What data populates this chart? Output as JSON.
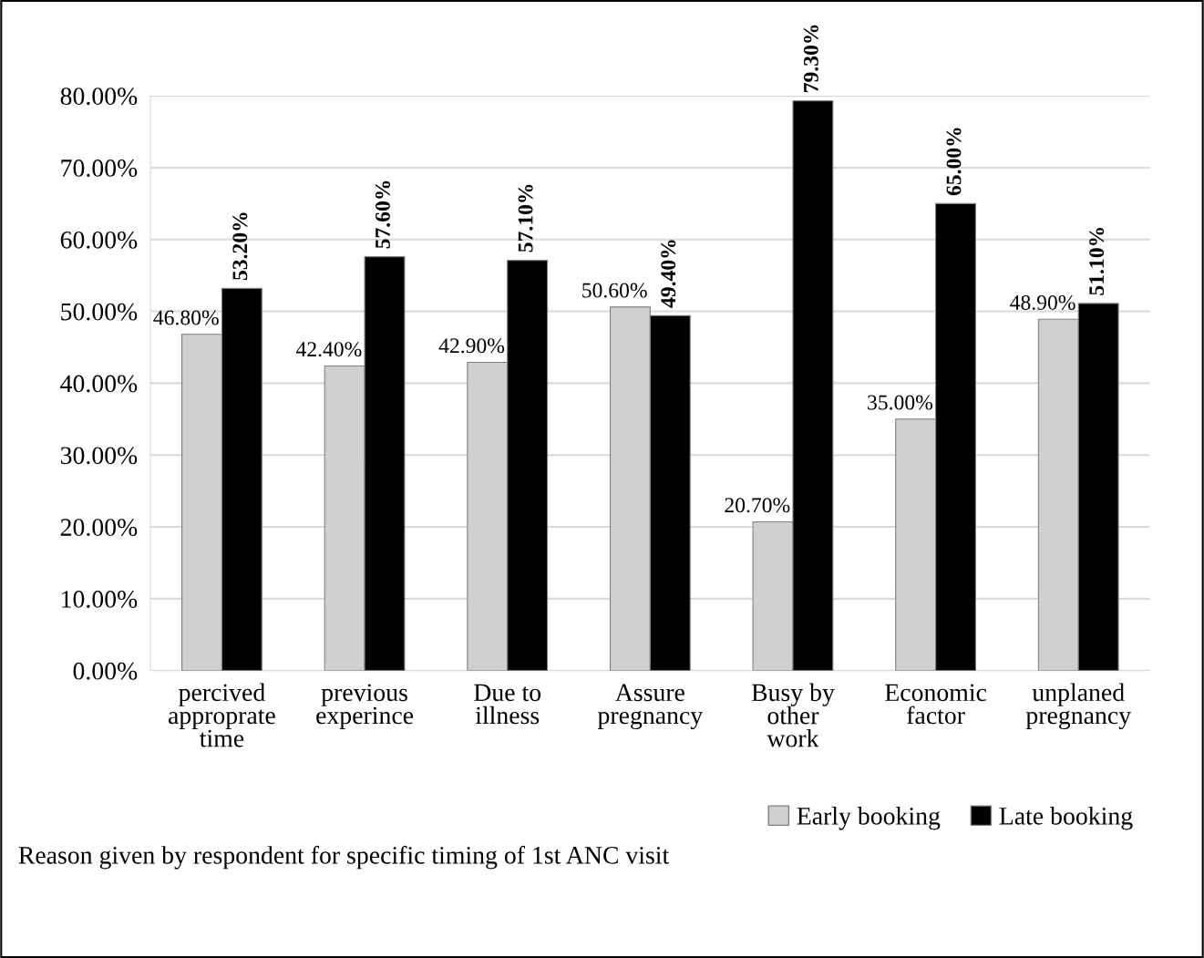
{
  "chart_data": {
    "type": "bar",
    "categories": [
      "percived approprate time",
      "previous experince",
      "Due to illness",
      "Assure pregnancy",
      "Busy by other work",
      "Economic factor",
      "unplaned pregnancy"
    ],
    "series": [
      {
        "name": "Early booking",
        "color": "#d0d0d0",
        "values": [
          46.8,
          42.4,
          42.9,
          50.6,
          20.7,
          35.0,
          48.9
        ],
        "value_labels": [
          "46.80%",
          "42.40%",
          "42.90%",
          "50.60%",
          "20.70%",
          "35.00%",
          "48.90%"
        ]
      },
      {
        "name": "Late booking",
        "color": "#000000",
        "values": [
          53.2,
          57.6,
          57.1,
          49.4,
          79.3,
          65.0,
          51.1
        ],
        "value_labels": [
          "53.20%",
          "57.60%",
          "57.10%",
          "49.40%",
          "79.30%",
          "65.00%",
          "51.10%"
        ]
      }
    ],
    "ylim": [
      0,
      80
    ],
    "yticks": [
      {
        "value": 0,
        "label": "0.00%"
      },
      {
        "value": 10,
        "label": "10.00%"
      },
      {
        "value": 20,
        "label": "20.00%"
      },
      {
        "value": 30,
        "label": "30.00%"
      },
      {
        "value": 40,
        "label": "40.00%"
      },
      {
        "value": 50,
        "label": "50.00%"
      },
      {
        "value": 60,
        "label": "60.00%"
      },
      {
        "value": 70,
        "label": "70.00%"
      },
      {
        "value": 80,
        "label": "80.00%"
      }
    ],
    "grid": "y",
    "legend": "bottom right",
    "annotations": [
      "Reason given by respondent for specific timing of 1st ANC visit"
    ]
  }
}
